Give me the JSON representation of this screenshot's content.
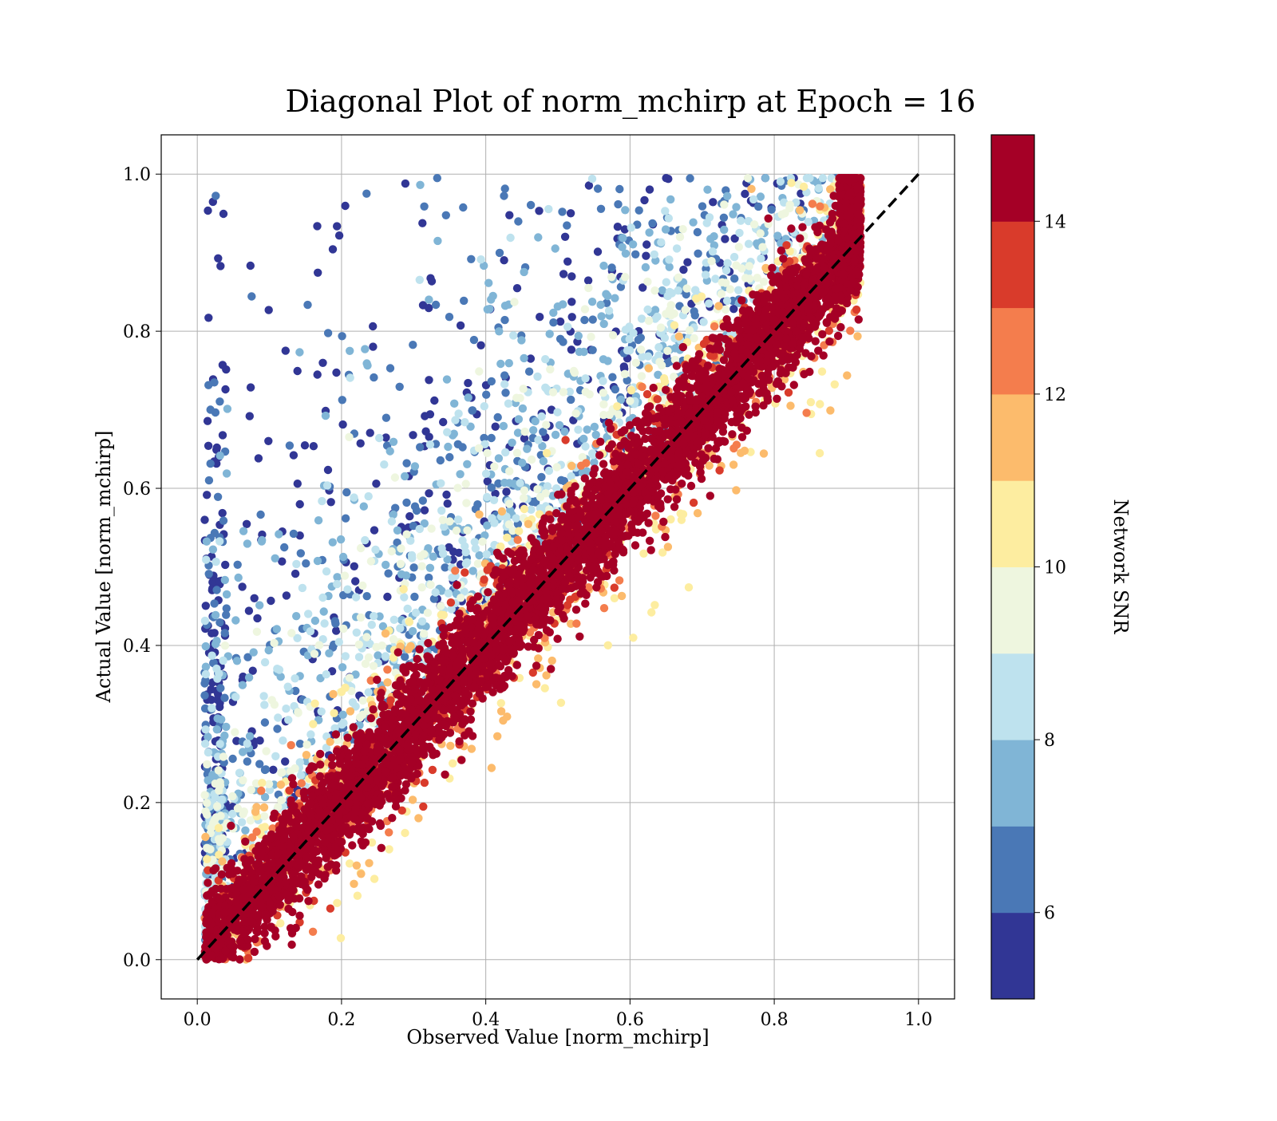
{
  "chart_data": {
    "type": "scatter",
    "title": "Diagonal Plot of norm_mchirp at Epoch = 16",
    "xlabel": "Observed Value [norm_mchirp]",
    "ylabel": "Actual Value [norm_mchirp]",
    "xlim": [
      -0.05,
      1.05
    ],
    "ylim": [
      -0.05,
      1.05
    ],
    "x_ticks": [
      "0.0",
      "0.2",
      "0.4",
      "0.6",
      "0.8",
      "1.0"
    ],
    "y_ticks": [
      "0.0",
      "0.2",
      "0.4",
      "0.6",
      "0.8",
      "1.0"
    ],
    "grid": true,
    "reference_line": {
      "x": [
        0,
        1
      ],
      "y": [
        0,
        1
      ],
      "style": "dashed",
      "color": "#000000"
    },
    "colorbar": {
      "label": "Network SNR",
      "range": [
        5,
        15
      ],
      "ticks": [
        "6",
        "8",
        "10",
        "12",
        "14"
      ],
      "tick_values": [
        6,
        8,
        10,
        12,
        14
      ],
      "colors": [
        "#313695",
        "#4a78b6",
        "#80b5d6",
        "#bee2ee",
        "#eef6df",
        "#fdeda0",
        "#fcbb6c",
        "#f47d4d",
        "#d93b2b",
        "#a50026"
      ]
    },
    "point_distribution": {
      "x_range": [
        0.0,
        0.92
      ],
      "y_range": [
        0.0,
        1.0
      ],
      "high_snr_points_near_diagonal": true,
      "low_snr_points_upper_left_scatter": true
    }
  }
}
